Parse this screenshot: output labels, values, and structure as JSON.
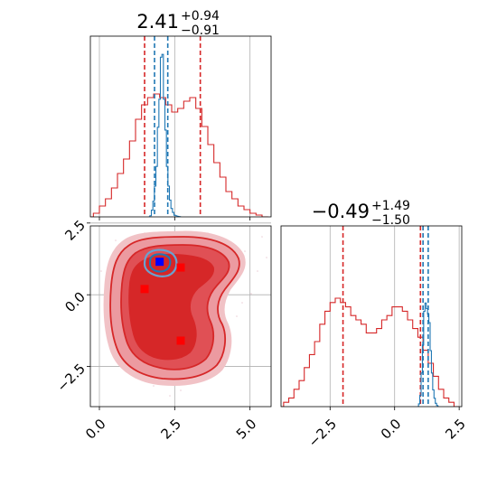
{
  "chart_data": [
    {
      "type": "histogram",
      "panel": "top-left",
      "title": "2.41",
      "title_plus": "+0.94",
      "title_minus": "−0.91",
      "xlim": [
        -0.3,
        5.7
      ],
      "grid": true,
      "series": [
        {
          "color": "#d62728",
          "x": [
            -0.3,
            -0.1,
            0.1,
            0.3,
            0.5,
            0.7,
            0.9,
            1.1,
            1.3,
            1.5,
            1.7,
            1.9,
            2.1,
            2.3,
            2.5,
            2.7,
            2.9,
            3.1,
            3.3,
            3.5,
            3.7,
            3.9,
            4.1,
            4.3,
            4.5,
            4.7,
            4.9,
            5.1,
            5.3,
            5.5
          ],
          "values": [
            0,
            0.01,
            0.03,
            0.05,
            0.08,
            0.12,
            0.16,
            0.21,
            0.27,
            0.31,
            0.33,
            0.34,
            0.33,
            0.31,
            0.29,
            0.3,
            0.32,
            0.33,
            0.3,
            0.25,
            0.2,
            0.15,
            0.11,
            0.07,
            0.05,
            0.03,
            0.02,
            0.01,
            0.005,
            0
          ],
          "vlines": [
            1.5,
            3.35
          ]
        },
        {
          "color": "#1f77b4",
          "x": [
            1.65,
            1.7,
            1.75,
            1.8,
            1.85,
            1.9,
            1.95,
            2.0,
            2.05,
            2.1,
            2.15,
            2.2,
            2.25,
            2.3,
            2.35,
            2.4,
            2.45,
            2.5,
            2.55,
            2.6,
            2.65,
            2.7
          ],
          "values": [
            0,
            0.02,
            0.12,
            0.28,
            0.55,
            0.9,
            1.6,
            2.1,
            2.85,
            2.9,
            2.1,
            1.55,
            0.9,
            0.55,
            0.3,
            0.15,
            0.08,
            0.03,
            0.02,
            0.01,
            0.005,
            0
          ],
          "vlines": [
            1.83,
            2.27
          ]
        }
      ]
    },
    {
      "type": "contour",
      "panel": "bottom-left",
      "xlim": [
        -0.3,
        5.7
      ],
      "ylim": [
        -3.9,
        2.4
      ],
      "xticks": [
        "0.0",
        "2.5",
        "5.0"
      ],
      "yticks": [
        "2.5",
        "0.0",
        "−2.5"
      ],
      "grid": true,
      "series": [
        {
          "color": "#d62728",
          "markers": [
            [
              1.5,
              0.2
            ],
            [
              2.7,
              0.95
            ],
            [
              2.7,
              -1.6
            ]
          ]
        },
        {
          "color": "#1f77b4",
          "markers": [
            [
              2.0,
              1.15
            ]
          ]
        }
      ]
    },
    {
      "type": "histogram",
      "panel": "bottom-right",
      "title": "−0.49",
      "title_plus": "+1.49",
      "title_minus": "−1.50",
      "xlim": [
        -4.4,
        2.6
      ],
      "xticks": [
        "−2.5",
        "0.0",
        "2.5"
      ],
      "grid": true,
      "series": [
        {
          "color": "#d62728",
          "x": [
            -4.4,
            -4.2,
            -4.0,
            -3.8,
            -3.6,
            -3.4,
            -3.2,
            -3.0,
            -2.8,
            -2.6,
            -2.4,
            -2.2,
            -2.0,
            -1.8,
            -1.6,
            -1.4,
            -1.2,
            -1.0,
            -0.8,
            -0.6,
            -0.4,
            -0.2,
            0.0,
            0.2,
            0.4,
            0.6,
            0.8,
            1.0,
            1.2,
            1.4,
            1.6,
            1.8,
            2.0,
            2.2,
            2.4
          ],
          "values": [
            0,
            0.01,
            0.02,
            0.04,
            0.06,
            0.09,
            0.12,
            0.15,
            0.19,
            0.22,
            0.24,
            0.25,
            0.24,
            0.23,
            0.21,
            0.2,
            0.19,
            0.17,
            0.17,
            0.18,
            0.2,
            0.21,
            0.23,
            0.23,
            0.22,
            0.2,
            0.18,
            0.16,
            0.13,
            0.1,
            0.07,
            0.04,
            0.02,
            0.01,
            0
          ],
          "vlines": [
            -2.0,
            1.0
          ]
        },
        {
          "color": "#1f77b4",
          "x": [
            0.9,
            0.95,
            1.0,
            1.05,
            1.1,
            1.15,
            1.2,
            1.25,
            1.3,
            1.35,
            1.4,
            1.45,
            1.5,
            1.55,
            1.6,
            1.65,
            1.7
          ],
          "values": [
            0,
            0.05,
            0.2,
            0.6,
            1.1,
            1.7,
            1.85,
            1.75,
            1.65,
            1.5,
            1.0,
            0.6,
            0.3,
            0.15,
            0.06,
            0.02,
            0
          ],
          "vlines": [
            1.1,
            1.3
          ]
        }
      ]
    }
  ]
}
